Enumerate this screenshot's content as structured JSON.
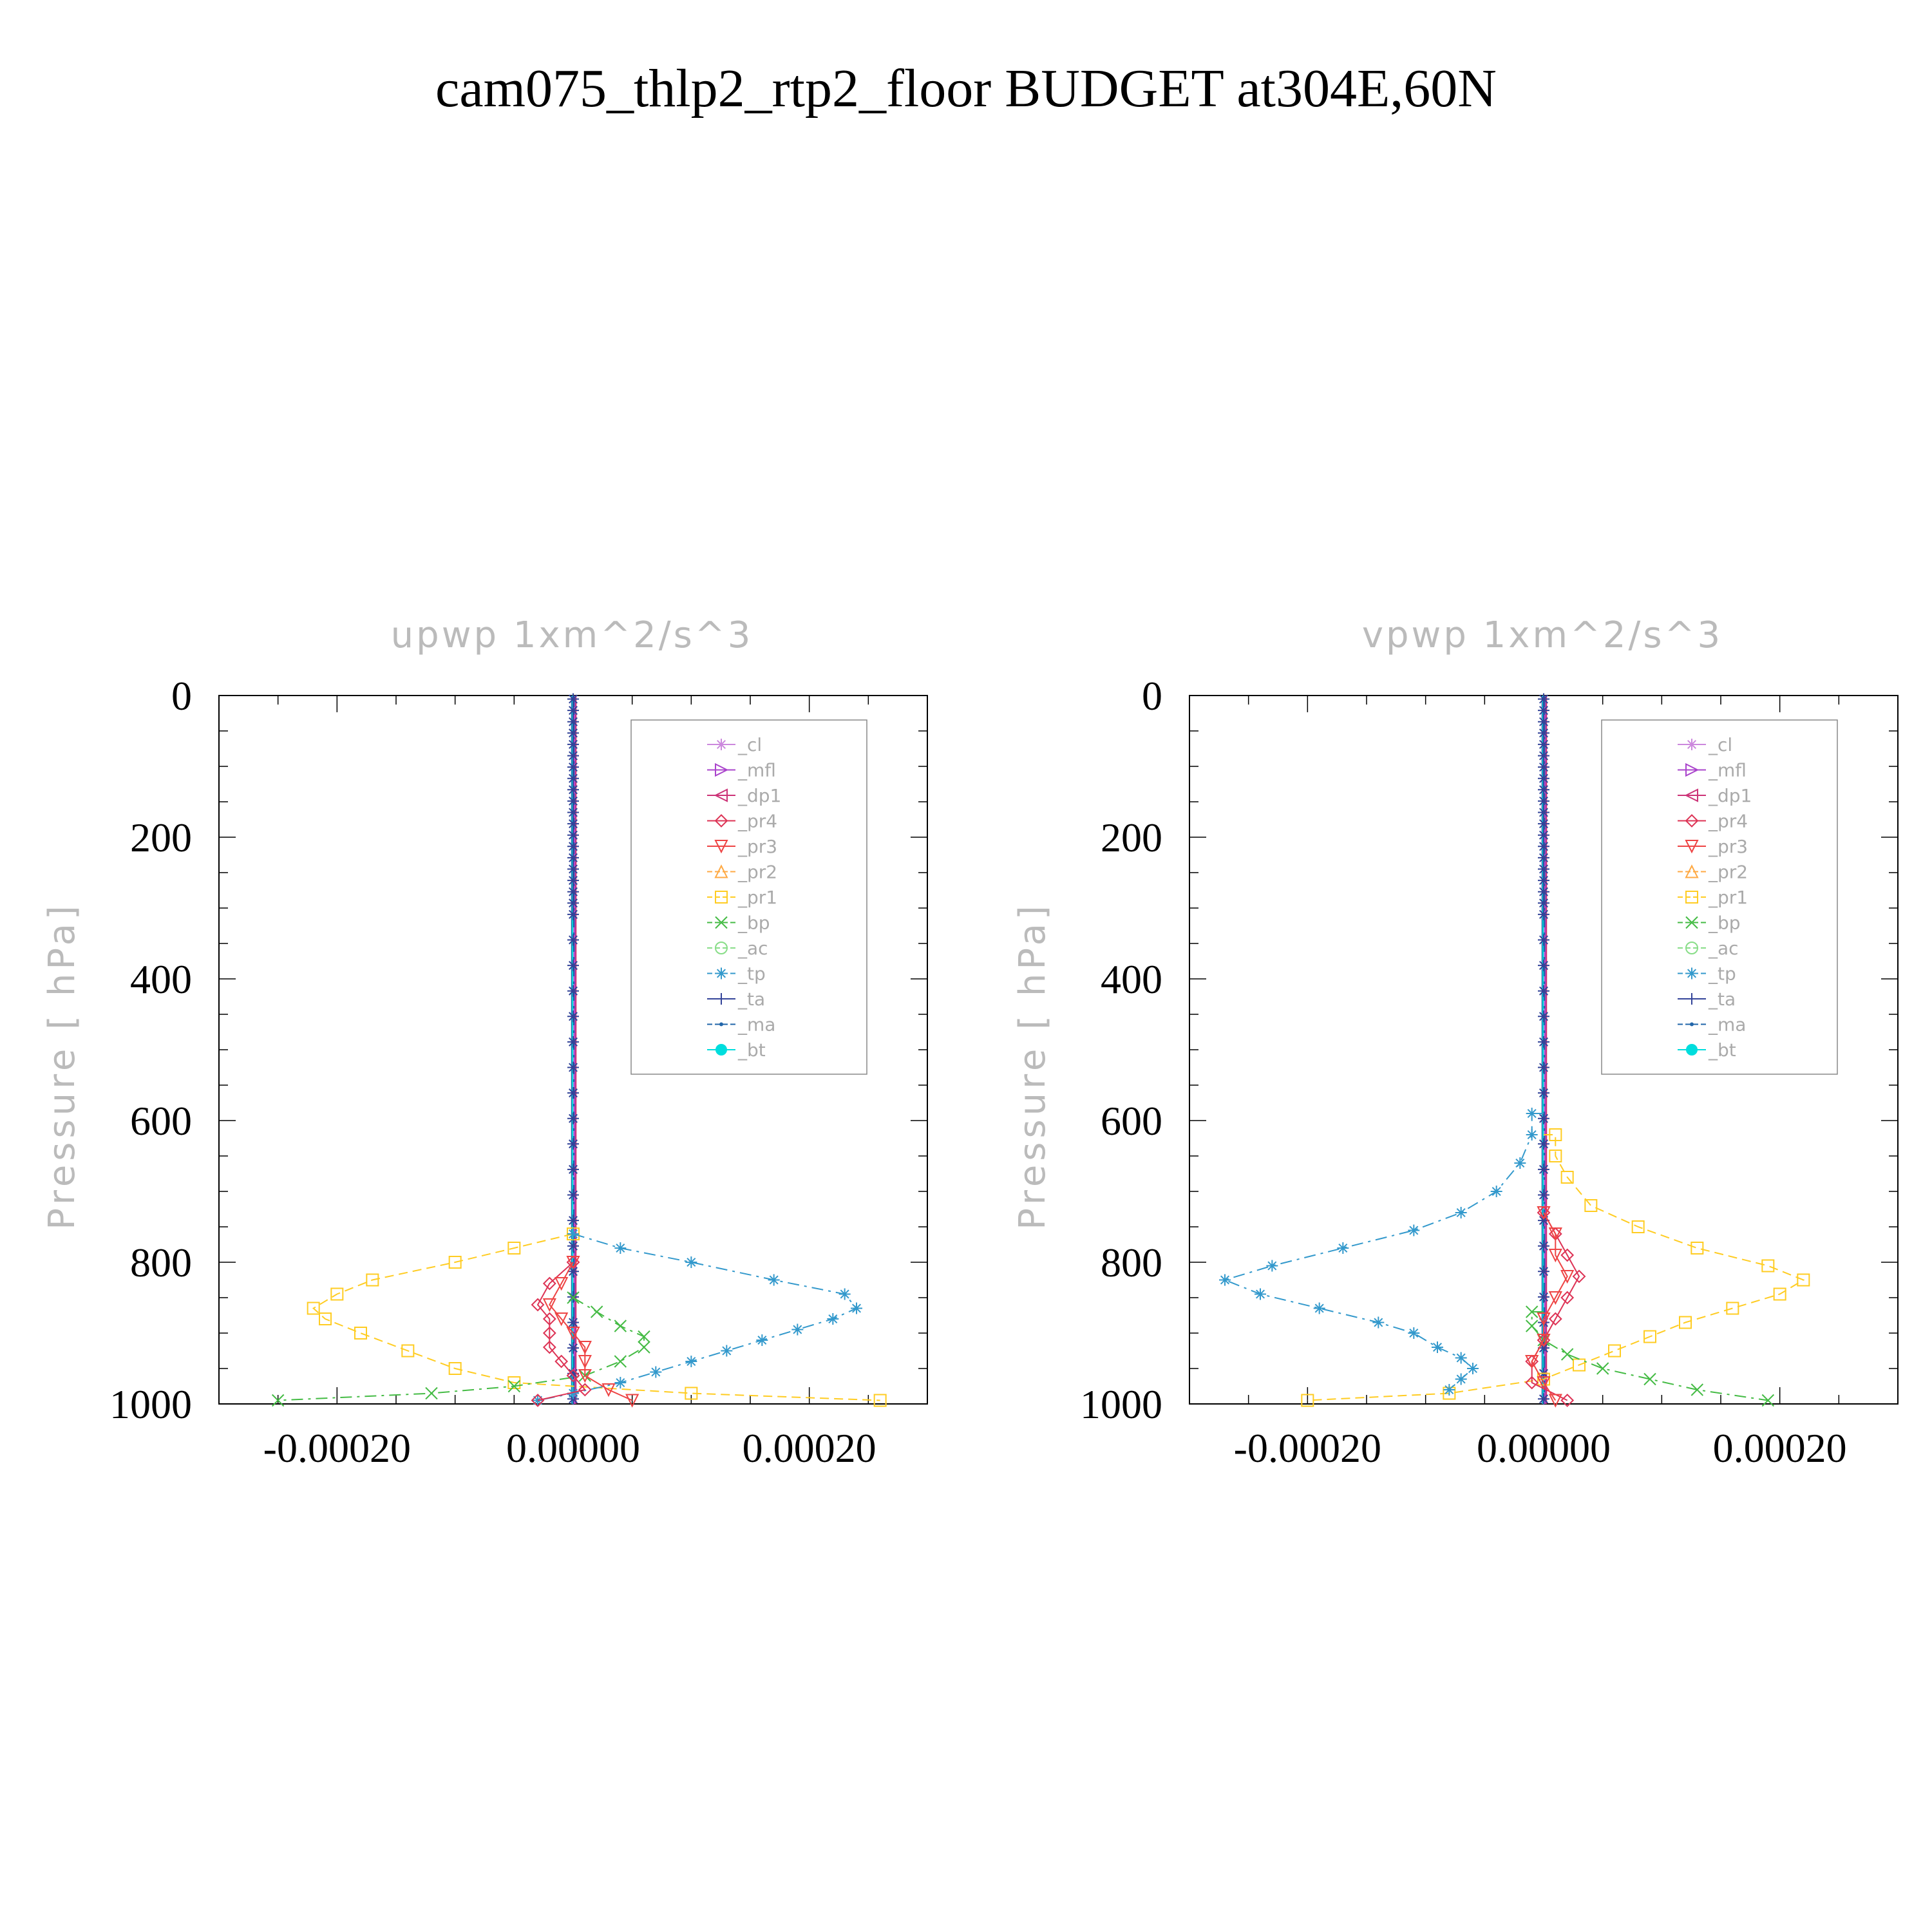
{
  "figure": {
    "title": "cam075_thlp2_rtp2_floor  BUDGET at304E,60N"
  },
  "colors": {
    "_cl": "#cc88dd",
    "_mfl": "#aa44cc",
    "_dp1": "#cc3377",
    "_pr4": "#dd3355",
    "_pr3": "#ee4444",
    "_pr2": "#ffaa44",
    "_pr1": "#ffcc22",
    "_bp": "#44bb44",
    "_ac": "#88dd88",
    "_tp": "#3399cc",
    "_ta": "#334499",
    "_ma": "#2266aa",
    "_bt": "#00dddd"
  },
  "chart_data": [
    {
      "type": "line",
      "title": "upwp   1xm^2/s^3",
      "ylabel": "Pressure  [ hPa]",
      "xlabel": "",
      "xlim": [
        -0.0003,
        0.0003
      ],
      "ylim": [
        1000,
        0
      ],
      "yticks": [
        "0",
        "200",
        "400",
        "600",
        "800",
        "1000"
      ],
      "xticks": [
        "-0.00020",
        "0.00000",
        "0.00020"
      ],
      "legend": [
        "_cl",
        "_mfl",
        "_dp1",
        "_pr4",
        "_pr3",
        "_pr2",
        "_pr1",
        "_bp",
        "_ac",
        "_tp",
        "_ta",
        "_ma",
        "_bt"
      ],
      "legend_position": "top-right",
      "series": [
        {
          "name": "_pr1",
          "p": [
            760,
            780,
            800,
            825,
            845,
            865,
            880,
            900,
            925,
            950,
            970,
            985,
            995
          ],
          "values": [
            0.0,
            -5e-05,
            -0.0001,
            -0.00017,
            -0.0002,
            -0.00022,
            -0.00021,
            -0.00018,
            -0.00014,
            -0.0001,
            -5e-05,
            0.0001,
            0.00026
          ]
        },
        {
          "name": "_tp",
          "p": [
            760,
            780,
            800,
            825,
            845,
            865,
            880,
            895,
            910,
            925,
            940,
            955,
            970,
            985,
            995
          ],
          "values": [
            0.0,
            4e-05,
            0.0001,
            0.00017,
            0.00023,
            0.00024,
            0.00022,
            0.00019,
            0.00016,
            0.00013,
            0.0001,
            7e-05,
            4e-05,
            0.0,
            -3e-05
          ]
        },
        {
          "name": "_bp",
          "p": [
            850,
            870,
            890,
            905,
            920,
            940,
            960,
            975,
            985,
            995
          ],
          "values": [
            0.0,
            2e-05,
            4e-05,
            6e-05,
            6e-05,
            4e-05,
            1e-05,
            -5e-05,
            -0.00012,
            -0.00025
          ]
        },
        {
          "name": "_pr4",
          "p": [
            800,
            830,
            860,
            880,
            900,
            920,
            940,
            960,
            980,
            995
          ],
          "values": [
            0.0,
            -2e-05,
            -3e-05,
            -2e-05,
            -2e-05,
            -2e-05,
            -1e-05,
            0.0,
            1e-05,
            -3e-05
          ]
        },
        {
          "name": "_pr3",
          "p": [
            800,
            830,
            860,
            880,
            900,
            920,
            940,
            960,
            980,
            995
          ],
          "values": [
            0.0,
            -1e-05,
            -2e-05,
            -1e-05,
            0.0,
            1e-05,
            1e-05,
            1e-05,
            3e-05,
            5e-05
          ]
        }
      ]
    },
    {
      "type": "line",
      "title": "vpwp   1xm^2/s^3",
      "ylabel": "Pressure  [ hPa]",
      "xlabel": "",
      "xlim": [
        -0.0003,
        0.0003
      ],
      "ylim": [
        1000,
        0
      ],
      "yticks": [
        "0",
        "200",
        "400",
        "600",
        "800",
        "1000"
      ],
      "xticks": [
        "-0.00020",
        "0.00000",
        "0.00020"
      ],
      "legend": [
        "_cl",
        "_mfl",
        "_dp1",
        "_pr4",
        "_pr3",
        "_pr2",
        "_pr1",
        "_bp",
        "_ac",
        "_tp",
        "_ta",
        "_ma",
        "_bt"
      ],
      "legend_position": "top-right",
      "series": [
        {
          "name": "_pr1",
          "p": [
            620,
            650,
            680,
            720,
            750,
            780,
            805,
            825,
            845,
            865,
            885,
            905,
            925,
            945,
            965,
            985,
            995
          ],
          "values": [
            1e-05,
            1e-05,
            2e-05,
            4e-05,
            8e-05,
            0.00013,
            0.00019,
            0.00022,
            0.0002,
            0.00016,
            0.00012,
            9e-05,
            6e-05,
            3e-05,
            0.0,
            -8e-05,
            -0.0002
          ]
        },
        {
          "name": "_tp",
          "p": [
            590,
            620,
            660,
            700,
            730,
            755,
            780,
            805,
            825,
            845,
            865,
            885,
            900,
            920,
            935,
            950,
            965,
            980
          ],
          "values": [
            -1e-05,
            -1e-05,
            -2e-05,
            -4e-05,
            -7e-05,
            -0.00011,
            -0.00017,
            -0.00023,
            -0.00027,
            -0.00024,
            -0.00019,
            -0.00014,
            -0.00011,
            -9e-05,
            -7e-05,
            -6e-05,
            -7e-05,
            -8e-05
          ]
        },
        {
          "name": "_bp",
          "p": [
            870,
            890,
            910,
            930,
            950,
            965,
            980,
            995
          ],
          "values": [
            -1e-05,
            -1e-05,
            0.0,
            2e-05,
            5e-05,
            9e-05,
            0.00013,
            0.00019
          ]
        },
        {
          "name": "_pr4",
          "p": [
            730,
            760,
            790,
            820,
            850,
            880,
            910,
            940,
            970,
            995
          ],
          "values": [
            0.0,
            1e-05,
            2e-05,
            3e-05,
            2e-05,
            1e-05,
            0.0,
            -1e-05,
            -1e-05,
            2e-05
          ]
        },
        {
          "name": "_pr3",
          "p": [
            730,
            760,
            790,
            820,
            850,
            880,
            910,
            940,
            970,
            995
          ],
          "values": [
            0.0,
            1e-05,
            1e-05,
            2e-05,
            1e-05,
            0.0,
            0.0,
            -1e-05,
            0.0,
            1e-05
          ]
        }
      ]
    }
  ]
}
